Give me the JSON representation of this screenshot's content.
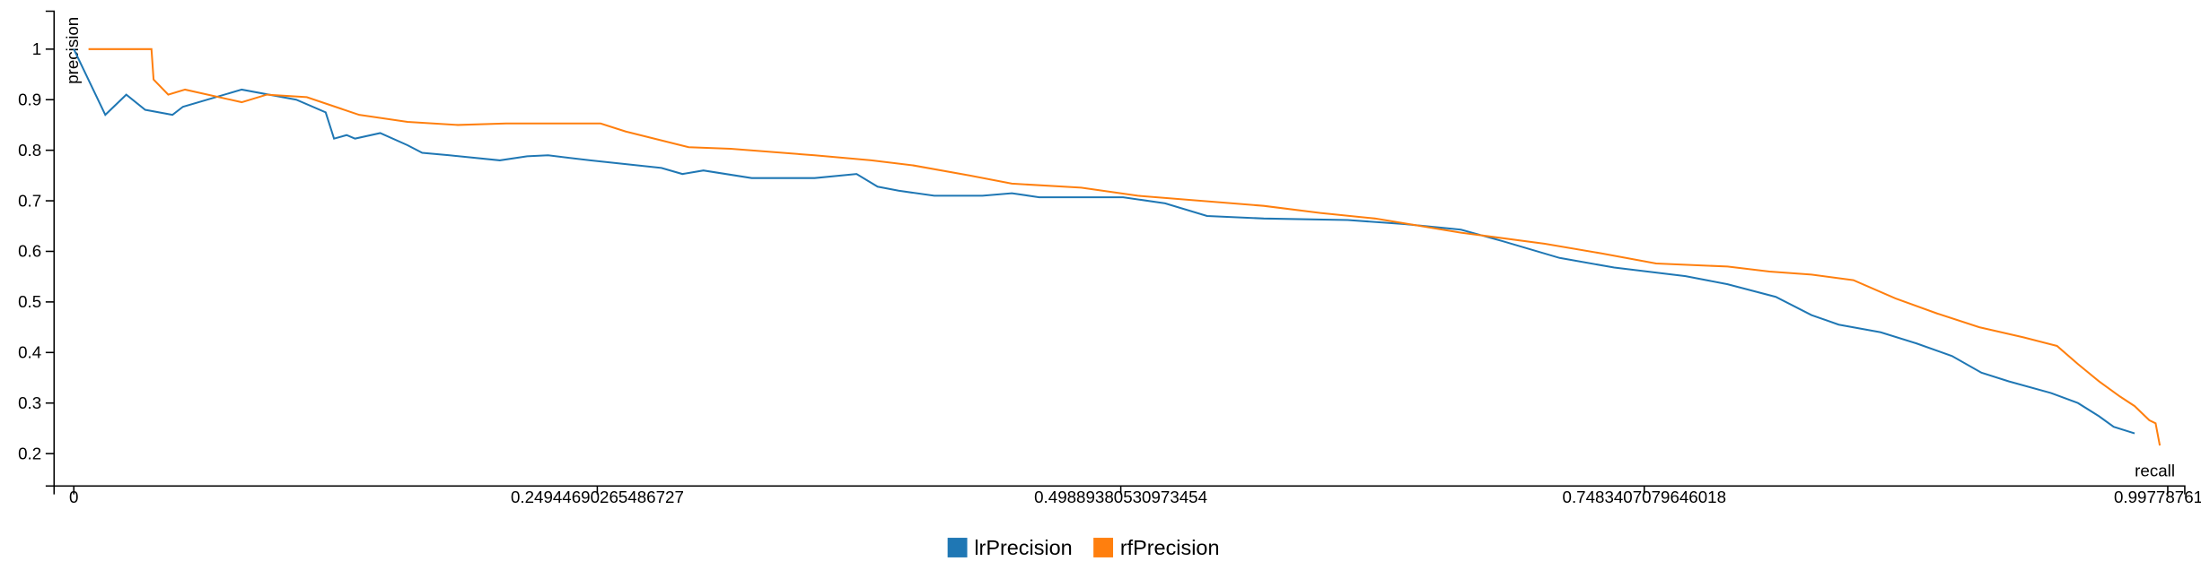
{
  "chart_data": {
    "type": "line",
    "x_label": "recall",
    "y_label": "precision",
    "xlim": [
      -0.0094,
      1.0059
    ],
    "ylim": [
      0.136,
      1.075
    ],
    "xticks": [
      0,
      0.24944690265486727,
      0.49889380530973454,
      0.7483407079646018,
      0.9977876106
    ],
    "yticks": [
      0.2,
      0.3,
      0.4,
      0.5,
      0.6,
      0.7,
      0.8,
      0.9,
      1
    ],
    "grid": false,
    "legend": "bottom",
    "series": [
      {
        "name": "lrPrecision",
        "color": "#1f77b4",
        "x": [
          0,
          0.015,
          0.025,
          0.034,
          0.047,
          0.052,
          0.08,
          0.106,
          0.12,
          0.124,
          0.13,
          0.134,
          0.146,
          0.159,
          0.166,
          0.179,
          0.203,
          0.216,
          0.226,
          0.246,
          0.28,
          0.29,
          0.3,
          0.323,
          0.332,
          0.353,
          0.373,
          0.383,
          0.393,
          0.41,
          0.433,
          0.447,
          0.46,
          0.5,
          0.52,
          0.54,
          0.567,
          0.607,
          0.634,
          0.661,
          0.681,
          0.708,
          0.734,
          0.768,
          0.788,
          0.811,
          0.828,
          0.841,
          0.861,
          0.878,
          0.895,
          0.909,
          0.922,
          0.942,
          0.955,
          0.965,
          0.972,
          0.982
        ],
        "values": [
          1.0,
          0.87,
          0.91,
          0.88,
          0.87,
          0.886,
          0.92,
          0.9,
          0.875,
          0.823,
          0.83,
          0.823,
          0.834,
          0.81,
          0.795,
          0.79,
          0.78,
          0.788,
          0.79,
          0.78,
          0.765,
          0.753,
          0.76,
          0.745,
          0.745,
          0.745,
          0.753,
          0.728,
          0.72,
          0.71,
          0.71,
          0.715,
          0.707,
          0.707,
          0.695,
          0.67,
          0.665,
          0.662,
          0.654,
          0.643,
          0.62,
          0.587,
          0.568,
          0.551,
          0.535,
          0.51,
          0.474,
          0.455,
          0.44,
          0.418,
          0.393,
          0.36,
          0.343,
          0.32,
          0.3,
          0.274,
          0.253,
          0.24
        ]
      },
      {
        "name": "rfPrecision",
        "color": "#ff7f0e",
        "x": [
          0.007,
          0.037,
          0.038,
          0.045,
          0.053,
          0.08,
          0.092,
          0.111,
          0.136,
          0.159,
          0.183,
          0.206,
          0.251,
          0.263,
          0.293,
          0.313,
          0.353,
          0.38,
          0.4,
          0.427,
          0.447,
          0.48,
          0.507,
          0.567,
          0.594,
          0.62,
          0.661,
          0.701,
          0.728,
          0.754,
          0.788,
          0.808,
          0.828,
          0.848,
          0.868,
          0.888,
          0.908,
          0.929,
          0.945,
          0.955,
          0.965,
          0.975,
          0.982,
          0.989,
          0.992,
          0.994
        ],
        "values": [
          1.0,
          1.0,
          0.94,
          0.91,
          0.92,
          0.895,
          0.91,
          0.905,
          0.87,
          0.856,
          0.85,
          0.853,
          0.853,
          0.837,
          0.806,
          0.803,
          0.79,
          0.78,
          0.77,
          0.75,
          0.734,
          0.726,
          0.71,
          0.69,
          0.676,
          0.665,
          0.637,
          0.615,
          0.596,
          0.576,
          0.57,
          0.56,
          0.554,
          0.543,
          0.507,
          0.477,
          0.45,
          0.43,
          0.413,
          0.377,
          0.343,
          0.313,
          0.294,
          0.266,
          0.26,
          0.216
        ]
      }
    ]
  }
}
